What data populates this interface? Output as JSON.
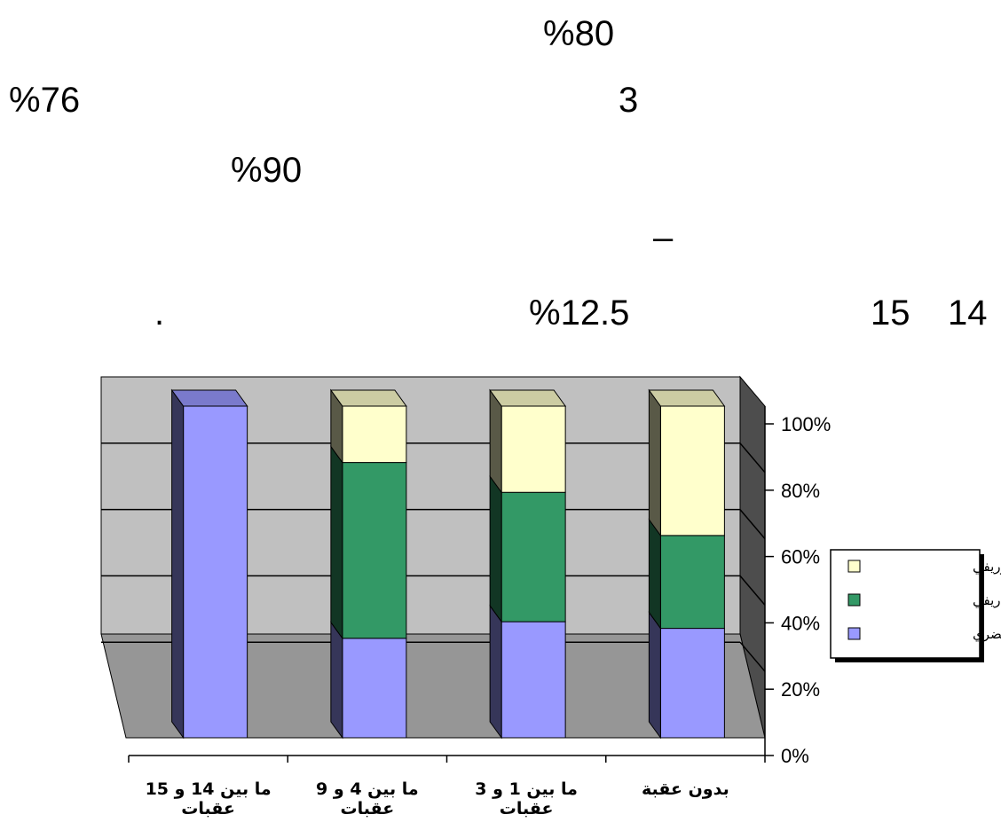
{
  "text_fragments": [
    "%80",
    "3",
    "%76",
    "%90",
    "–",
    "14",
    "15",
    "%12.5",
    "."
  ],
  "chart_data": {
    "type": "bar",
    "stacked": "percent",
    "three_d": true,
    "categories": [
      "بدون عقبة",
      "ما بين 1 و 3 عقبات",
      "ما بين 4 و 9 عقبات",
      "ما بين 14 و 15 عقبات"
    ],
    "series": [
      {
        "name": "حضري",
        "color": "#9999ff",
        "values": [
          33,
          35,
          30,
          100
        ]
      },
      {
        "name": "ريفي",
        "color": "#339966",
        "values": [
          28,
          39,
          53,
          0
        ]
      },
      {
        "name": "حضري وريفي",
        "color": "#ffffcc",
        "values": [
          39,
          26,
          17,
          0
        ]
      }
    ],
    "y_ticks": [
      "0%",
      "20%",
      "40%",
      "60%",
      "80%",
      "100%"
    ],
    "ylim": [
      0,
      100
    ],
    "grid": true,
    "legend_position": "right",
    "axis_side": "right",
    "wall_color": "#c0c0c0",
    "floor_color": "#969696"
  }
}
